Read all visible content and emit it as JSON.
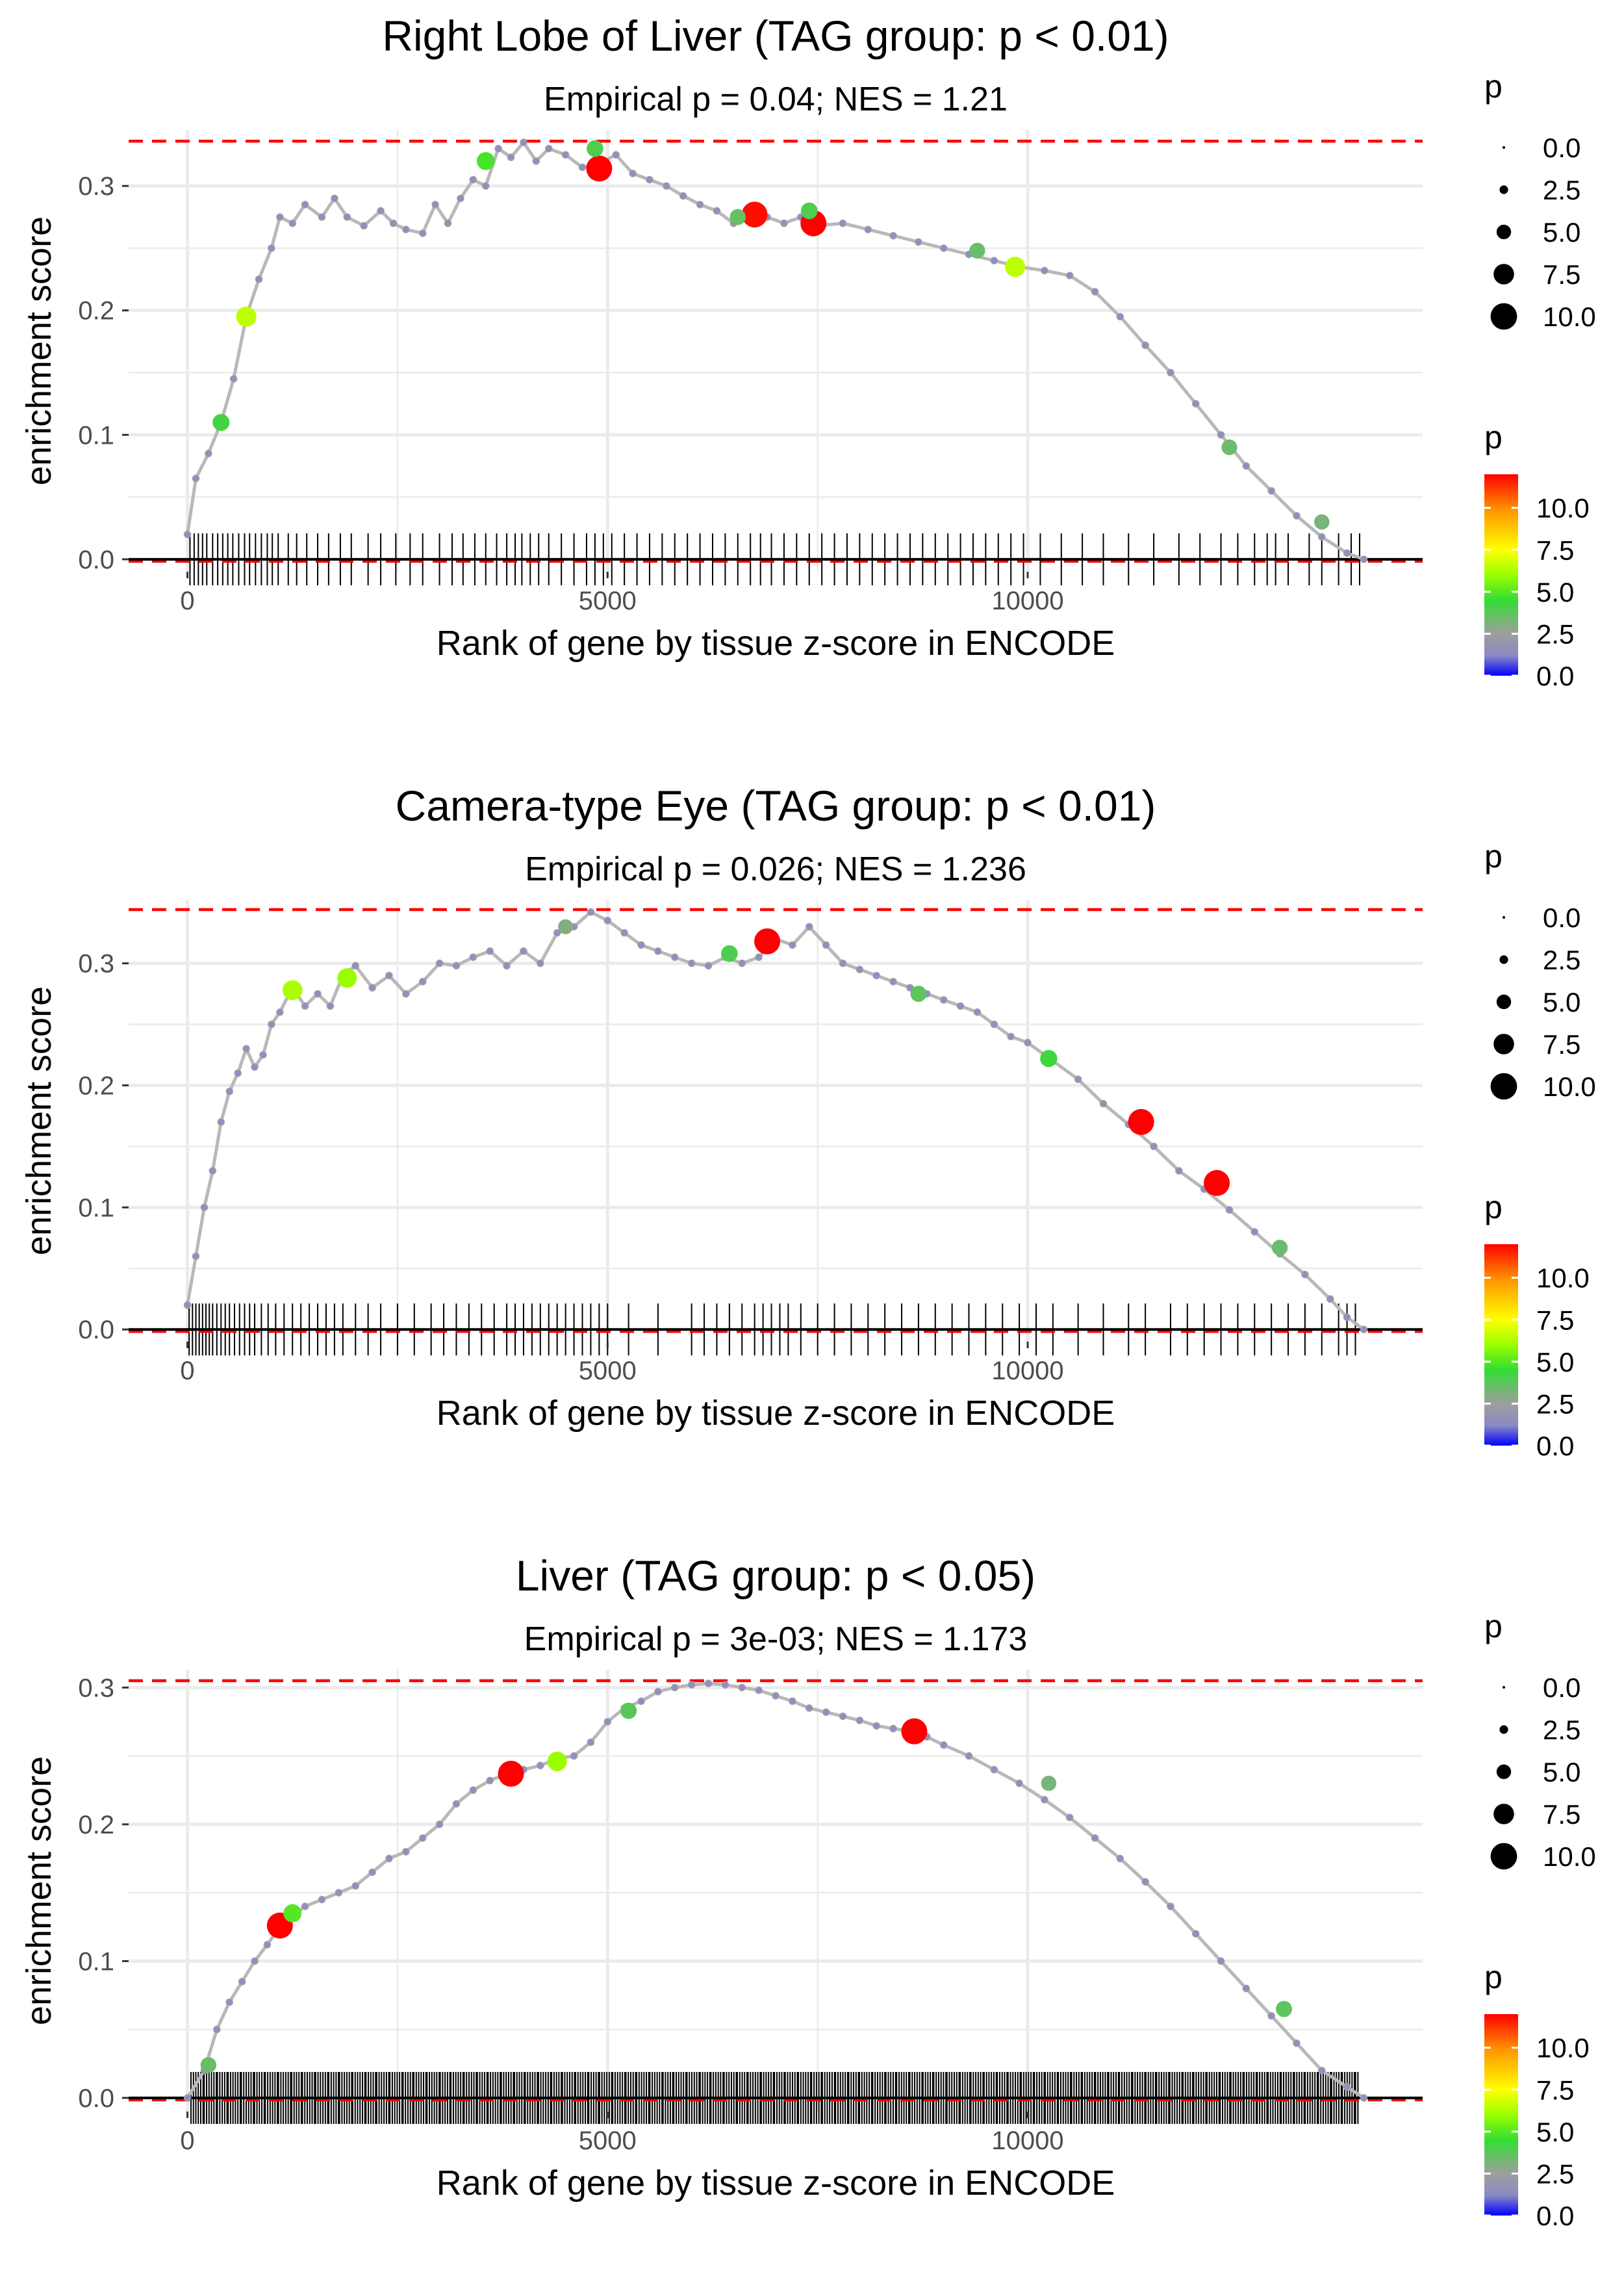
{
  "colors": {
    "threshold_line": "#ff0000",
    "zero_line": "#000000",
    "curve": "#b8b8b8",
    "gridline": "#ebebeb",
    "gradient_stops": [
      "#0000ff",
      "#8a8ac4",
      "#9e9e9e",
      "#33dd33",
      "#99ff00",
      "#ffff00",
      "#ff9900",
      "#ff0000"
    ]
  },
  "chart_data": [
    {
      "type": "line",
      "title": "Right Lobe of Liver (TAG group: p < 0.01)",
      "subtitle": "Empirical p = 0.04; NES = 1.21",
      "xlabel": "Rank of gene by tissue z-score in ENCODE",
      "ylabel": "enrichment score",
      "xlim": [
        -700,
        14700
      ],
      "ylim": [
        -0.01,
        0.345
      ],
      "xticks": [
        0,
        5000,
        10000
      ],
      "xtick_labels": [
        "0",
        "5000",
        "10000"
      ],
      "yticks": [
        0.0,
        0.1,
        0.2,
        0.3
      ],
      "ytick_labels": [
        "0.0",
        "0.1",
        "0.2",
        "0.3"
      ],
      "threshold": 0.336,
      "curve_x": [
        0,
        100,
        250,
        400,
        550,
        700,
        850,
        1000,
        1100,
        1250,
        1400,
        1600,
        1750,
        1900,
        2100,
        2300,
        2450,
        2600,
        2800,
        2950,
        3100,
        3250,
        3400,
        3550,
        3700,
        3850,
        4000,
        4150,
        4300,
        4500,
        4700,
        4900,
        5100,
        5300,
        5500,
        5700,
        5900,
        6100,
        6300,
        6500,
        6700,
        6900,
        7100,
        7300,
        7500,
        7800,
        8100,
        8400,
        8700,
        9000,
        9300,
        9600,
        9900,
        10200,
        10500,
        10800,
        11100,
        11400,
        11700,
        12000,
        12300,
        12600,
        12900,
        13200,
        13500,
        13800,
        14000
      ],
      "curve_y": [
        0.02,
        0.065,
        0.085,
        0.11,
        0.145,
        0.195,
        0.225,
        0.25,
        0.275,
        0.27,
        0.285,
        0.275,
        0.29,
        0.275,
        0.268,
        0.28,
        0.27,
        0.265,
        0.262,
        0.285,
        0.27,
        0.29,
        0.305,
        0.3,
        0.33,
        0.323,
        0.335,
        0.32,
        0.33,
        0.325,
        0.315,
        0.318,
        0.325,
        0.31,
        0.305,
        0.3,
        0.292,
        0.285,
        0.28,
        0.27,
        0.278,
        0.275,
        0.27,
        0.275,
        0.268,
        0.27,
        0.265,
        0.26,
        0.255,
        0.25,
        0.245,
        0.24,
        0.235,
        0.232,
        0.228,
        0.215,
        0.195,
        0.172,
        0.15,
        0.125,
        0.1,
        0.075,
        0.055,
        0.035,
        0.018,
        0.005,
        0.0
      ],
      "points": [
        {
          "x": 4900,
          "y": 0.314,
          "p": 12.0
        },
        {
          "x": 6750,
          "y": 0.277,
          "p": 11.8
        },
        {
          "x": 7450,
          "y": 0.27,
          "p": 12.0
        },
        {
          "x": 700,
          "y": 0.195,
          "p": 6.5
        },
        {
          "x": 9850,
          "y": 0.235,
          "p": 6.5
        },
        {
          "x": 3550,
          "y": 0.32,
          "p": 4.8
        },
        {
          "x": 400,
          "y": 0.11,
          "p": 4.2
        },
        {
          "x": 4850,
          "y": 0.33,
          "p": 4.0
        },
        {
          "x": 7400,
          "y": 0.28,
          "p": 4.0
        },
        {
          "x": 6550,
          "y": 0.275,
          "p": 3.6
        },
        {
          "x": 9400,
          "y": 0.248,
          "p": 3.5
        },
        {
          "x": 12400,
          "y": 0.09,
          "p": 3.4
        },
        {
          "x": 13500,
          "y": 0.03,
          "p": 3.2
        }
      ],
      "rug_x": [
        30,
        80,
        130,
        180,
        230,
        300,
        360,
        420,
        480,
        540,
        610,
        680,
        740,
        810,
        880,
        950,
        1010,
        1080,
        1200,
        1300,
        1420,
        1550,
        1680,
        1820,
        1950,
        2150,
        2300,
        2480,
        2650,
        2800,
        3000,
        3150,
        3280,
        3420,
        3550,
        3680,
        3800,
        3900,
        3980,
        4080,
        4180,
        4300,
        4450,
        4600,
        4750,
        4850,
        4950,
        5050,
        5200,
        5350,
        5500,
        5650,
        5800,
        5950,
        6100,
        6250,
        6400,
        6550,
        6700,
        6820,
        6950,
        7100,
        7250,
        7400,
        7550,
        7700,
        7850,
        8000,
        8150,
        8300,
        8450,
        8600,
        8750,
        8900,
        9050,
        9200,
        9350,
        9500,
        9650,
        9800,
        9950,
        10150,
        10400,
        10650,
        10900,
        11200,
        11500,
        11800,
        12050,
        12300,
        12500,
        12700,
        12850,
        12950,
        13100,
        13350,
        13500,
        13700,
        13850,
        13950
      ]
    },
    {
      "type": "line",
      "title": "Camera-type Eye (TAG group: p < 0.01)",
      "subtitle": "Empirical p = 0.026; NES = 1.236",
      "xlabel": "Rank of gene by tissue z-score in ENCODE",
      "ylabel": "enrichment score",
      "xlim": [
        -700,
        14700
      ],
      "ylim": [
        -0.01,
        0.352
      ],
      "xticks": [
        0,
        5000,
        10000
      ],
      "xtick_labels": [
        "0",
        "5000",
        "10000"
      ],
      "yticks": [
        0.0,
        0.1,
        0.2,
        0.3
      ],
      "ytick_labels": [
        "0.0",
        "0.1",
        "0.2",
        "0.3"
      ],
      "threshold": 0.344,
      "curve_x": [
        0,
        100,
        200,
        300,
        400,
        500,
        600,
        700,
        800,
        900,
        1000,
        1100,
        1250,
        1400,
        1550,
        1700,
        1850,
        2000,
        2200,
        2400,
        2600,
        2800,
        3000,
        3200,
        3400,
        3600,
        3800,
        4000,
        4200,
        4400,
        4600,
        4800,
        5000,
        5200,
        5400,
        5600,
        5800,
        6000,
        6200,
        6400,
        6600,
        6800,
        7000,
        7200,
        7400,
        7600,
        7800,
        8000,
        8200,
        8400,
        8600,
        8800,
        9000,
        9200,
        9400,
        9600,
        9800,
        10000,
        10300,
        10600,
        10900,
        11200,
        11500,
        11800,
        12100,
        12400,
        12700,
        13000,
        13300,
        13600,
        13800,
        14000
      ],
      "curve_y": [
        0.02,
        0.06,
        0.1,
        0.13,
        0.17,
        0.195,
        0.21,
        0.23,
        0.215,
        0.225,
        0.25,
        0.26,
        0.28,
        0.265,
        0.275,
        0.265,
        0.29,
        0.298,
        0.28,
        0.29,
        0.275,
        0.285,
        0.3,
        0.298,
        0.305,
        0.31,
        0.298,
        0.31,
        0.3,
        0.325,
        0.33,
        0.342,
        0.335,
        0.325,
        0.315,
        0.31,
        0.305,
        0.3,
        0.298,
        0.305,
        0.3,
        0.305,
        0.32,
        0.315,
        0.33,
        0.315,
        0.3,
        0.295,
        0.29,
        0.285,
        0.28,
        0.275,
        0.27,
        0.265,
        0.26,
        0.25,
        0.24,
        0.235,
        0.22,
        0.205,
        0.185,
        0.168,
        0.15,
        0.13,
        0.115,
        0.098,
        0.08,
        0.062,
        0.045,
        0.025,
        0.01,
        0.0
      ],
      "points": [
        {
          "x": 11350,
          "y": 0.17,
          "p": 12.0
        },
        {
          "x": 12250,
          "y": 0.12,
          "p": 12.0
        },
        {
          "x": 6900,
          "y": 0.318,
          "p": 12.0
        },
        {
          "x": 1250,
          "y": 0.278,
          "p": 6.3
        },
        {
          "x": 1900,
          "y": 0.288,
          "p": 6.0
        },
        {
          "x": 10250,
          "y": 0.222,
          "p": 4.3
        },
        {
          "x": 6450,
          "y": 0.308,
          "p": 4.0
        },
        {
          "x": 8700,
          "y": 0.275,
          "p": 3.7
        },
        {
          "x": 13000,
          "y": 0.067,
          "p": 3.5
        },
        {
          "x": 4500,
          "y": 0.33,
          "p": 3.0
        }
      ],
      "rug_x": [
        20,
        60,
        100,
        140,
        180,
        220,
        260,
        300,
        350,
        400,
        450,
        500,
        560,
        620,
        680,
        740,
        800,
        880,
        960,
        1050,
        1150,
        1250,
        1350,
        1450,
        1550,
        1650,
        1750,
        1850,
        2000,
        2150,
        2300,
        2500,
        2700,
        2900,
        3050,
        3200,
        3350,
        3500,
        3650,
        3800,
        3900,
        4000,
        4100,
        4200,
        4300,
        4400,
        4500,
        4600,
        4700,
        4800,
        4900,
        5000,
        5250,
        5600,
        6000,
        6150,
        6300,
        6450,
        6600,
        6750,
        6850,
        6950,
        7050,
        7150,
        7300,
        7500,
        7700,
        7900,
        8100,
        8300,
        8500,
        8700,
        8900,
        9100,
        9300,
        9500,
        9700,
        9900,
        10100,
        10300,
        10600,
        10900,
        11200,
        11400,
        11700,
        11900,
        12100,
        12300,
        12500,
        12700,
        12900,
        13100,
        13300,
        13500,
        13700,
        13800,
        13900
      ]
    },
    {
      "type": "line",
      "title": "Liver (TAG group: p < 0.05)",
      "subtitle": "Empirical p = 3e-03; NES = 1.173",
      "xlabel": "Rank of gene by tissue z-score in ENCODE",
      "ylabel": "enrichment score",
      "xlim": [
        -700,
        14700
      ],
      "ylim": [
        -0.01,
        0.313
      ],
      "xticks": [
        0,
        5000,
        10000
      ],
      "xtick_labels": [
        "0",
        "5000",
        "10000"
      ],
      "yticks": [
        0.0,
        0.1,
        0.2,
        0.3
      ],
      "ytick_labels": [
        "0.0",
        "0.1",
        "0.2",
        "0.3"
      ],
      "threshold": 0.305,
      "curve_x": [
        0,
        200,
        350,
        500,
        650,
        800,
        950,
        1100,
        1250,
        1400,
        1600,
        1800,
        2000,
        2200,
        2400,
        2600,
        2800,
        3000,
        3200,
        3400,
        3600,
        3800,
        4000,
        4200,
        4400,
        4600,
        4800,
        5000,
        5200,
        5400,
        5600,
        5800,
        6000,
        6200,
        6400,
        6600,
        6800,
        7000,
        7200,
        7400,
        7600,
        7800,
        8000,
        8200,
        8400,
        8600,
        8800,
        9000,
        9300,
        9600,
        9900,
        10200,
        10500,
        10800,
        11100,
        11400,
        11700,
        12000,
        12300,
        12600,
        12900,
        13200,
        13500,
        13800,
        14000
      ],
      "curve_y": [
        0.0,
        0.02,
        0.05,
        0.07,
        0.085,
        0.1,
        0.112,
        0.125,
        0.133,
        0.14,
        0.145,
        0.15,
        0.155,
        0.165,
        0.175,
        0.18,
        0.19,
        0.2,
        0.215,
        0.225,
        0.232,
        0.237,
        0.24,
        0.243,
        0.248,
        0.25,
        0.26,
        0.275,
        0.285,
        0.29,
        0.297,
        0.3,
        0.302,
        0.303,
        0.302,
        0.3,
        0.298,
        0.294,
        0.29,
        0.285,
        0.282,
        0.279,
        0.276,
        0.272,
        0.27,
        0.268,
        0.264,
        0.258,
        0.25,
        0.24,
        0.23,
        0.218,
        0.205,
        0.19,
        0.175,
        0.158,
        0.14,
        0.12,
        0.1,
        0.08,
        0.06,
        0.04,
        0.02,
        0.008,
        0.0
      ],
      "points": [
        {
          "x": 1100,
          "y": 0.126,
          "p": 12.0
        },
        {
          "x": 3850,
          "y": 0.237,
          "p": 12.0
        },
        {
          "x": 8650,
          "y": 0.268,
          "p": 12.0
        },
        {
          "x": 4400,
          "y": 0.246,
          "p": 6.0
        },
        {
          "x": 5250,
          "y": 0.283,
          "p": 3.8
        },
        {
          "x": 1250,
          "y": 0.135,
          "p": 5.0
        },
        {
          "x": 250,
          "y": 0.024,
          "p": 3.5
        },
        {
          "x": 13050,
          "y": 0.065,
          "p": 3.7
        },
        {
          "x": 10250,
          "y": 0.23,
          "p": 3.2
        }
      ],
      "rug_density": {
        "from": 50,
        "to": 13950,
        "step": 26
      }
    }
  ],
  "legend": {
    "size_title": "p",
    "size_entries": [
      "0.0",
      "2.5",
      "5.0",
      "7.5",
      "10.0"
    ],
    "color_title": "p",
    "color_entries": [
      "10.0",
      "7.5",
      "5.0",
      "2.5",
      "0.0"
    ]
  }
}
